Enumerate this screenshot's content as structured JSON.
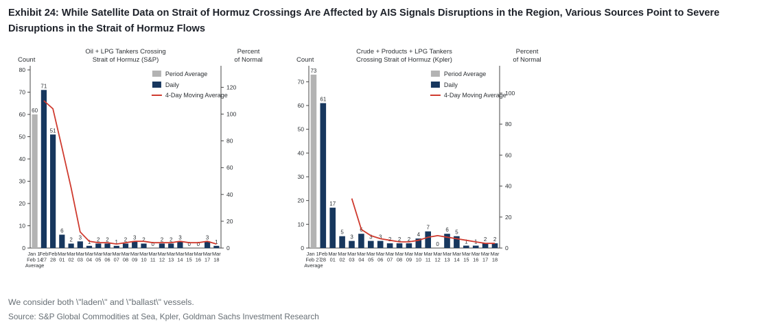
{
  "title": "Exhibit 24: While Satellite Data on Strait of Hormuz Crossings Are Affected by AIS Signals Disruptions in the Region, Various Sources Point to Severe Disruptions in the Strait of Hormuz Flows",
  "footnote": "We consider both \\\"laden\\\" and \\\"ballast\\\" vessels.",
  "source": "Source: S&P Global Commodities at Sea, Kpler, Goldman Sachs Investment Research",
  "colors": {
    "period_average": "#b3b3b3",
    "daily": "#17375e",
    "moving_average": "#cf3a2e",
    "axis": "#444444",
    "text": "#2b2f33"
  },
  "legend": [
    "Period Average",
    "Daily",
    "4-Day Moving Average"
  ],
  "chart_data": [
    {
      "type": "bar",
      "title_lines": [
        "Oil + LPG Tankers Crossing",
        "Strait of Hormuz (S&P)"
      ],
      "left_axis": {
        "title": "Count",
        "ticks": [
          0,
          10,
          20,
          30,
          40,
          50,
          60,
          70,
          80
        ],
        "max": 80
      },
      "right_axis": {
        "title_lines": [
          "Percent",
          "of Normal"
        ],
        "ticks": [
          0,
          20,
          40,
          60,
          80,
          100,
          120
        ],
        "max": 133
      },
      "categories": [
        [
          "Jan 1-",
          "Feb 14",
          "Average"
        ],
        [
          "Feb",
          "27"
        ],
        [
          "Feb",
          "28"
        ],
        [
          "Mar",
          "01"
        ],
        [
          "Mar",
          "02"
        ],
        [
          "Mar",
          "03"
        ],
        [
          "Mar",
          "04"
        ],
        [
          "Mar",
          "05"
        ],
        [
          "Mar",
          "06"
        ],
        [
          "Mar",
          "07"
        ],
        [
          "Mar",
          "08"
        ],
        [
          "Mar",
          "09"
        ],
        [
          "Mar",
          "10"
        ],
        [
          "Mar",
          "11"
        ],
        [
          "Mar",
          "12"
        ],
        [
          "Mar",
          "13"
        ],
        [
          "Mar",
          "14"
        ],
        [
          "Mar",
          "15"
        ],
        [
          "Mar",
          "16"
        ],
        [
          "Mar",
          "17"
        ],
        [
          "Mar",
          "18"
        ]
      ],
      "values": [
        60,
        71,
        51,
        6,
        2,
        3,
        1,
        2,
        2,
        1,
        2,
        3,
        2,
        0,
        2,
        2,
        3,
        0,
        0,
        3,
        1
      ],
      "ma_percent": [
        null,
        110,
        104,
        75,
        45,
        12,
        5,
        4,
        4,
        3,
        4,
        5,
        5,
        4,
        4,
        4,
        5,
        4,
        4,
        5,
        3
      ]
    },
    {
      "type": "bar",
      "title_lines": [
        "Crude + Products + LPG Tankers",
        "Crossing Strait of Hormuz (Kpler)"
      ],
      "left_axis": {
        "title": "Count",
        "ticks": [
          0,
          10,
          20,
          30,
          40,
          50,
          60,
          70
        ],
        "max": 75
      },
      "right_axis": {
        "title_lines": [
          "Percent",
          "of Normal"
        ],
        "ticks": [
          0,
          20,
          40,
          60,
          80,
          100
        ],
        "max": 115
      },
      "categories": [
        [
          "Jan 1-",
          "Feb 27",
          "Average"
        ],
        [
          "Feb",
          "28"
        ],
        [
          "Mar",
          "01"
        ],
        [
          "Mar",
          "02"
        ],
        [
          "Mar",
          "03"
        ],
        [
          "Mar",
          "04"
        ],
        [
          "Mar",
          "05"
        ],
        [
          "Mar",
          "06"
        ],
        [
          "Mar",
          "07"
        ],
        [
          "Mar",
          "08"
        ],
        [
          "Mar",
          "09"
        ],
        [
          "Mar",
          "10"
        ],
        [
          "Mar",
          "11"
        ],
        [
          "Mar",
          "12"
        ],
        [
          "Mar",
          "13"
        ],
        [
          "Mar",
          "14"
        ],
        [
          "Mar",
          "15"
        ],
        [
          "Mar",
          "16"
        ],
        [
          "Mar",
          "17"
        ],
        [
          "Mar",
          "18"
        ]
      ],
      "values": [
        73,
        61,
        17,
        5,
        3,
        6,
        3,
        3,
        2,
        2,
        2,
        4,
        7,
        0,
        6,
        5,
        1,
        1,
        2,
        2
      ],
      "ma_percent": [
        null,
        null,
        null,
        null,
        32,
        12,
        8,
        6,
        5,
        4,
        4,
        5,
        7,
        8,
        7,
        6,
        5,
        4,
        3,
        3
      ]
    }
  ]
}
